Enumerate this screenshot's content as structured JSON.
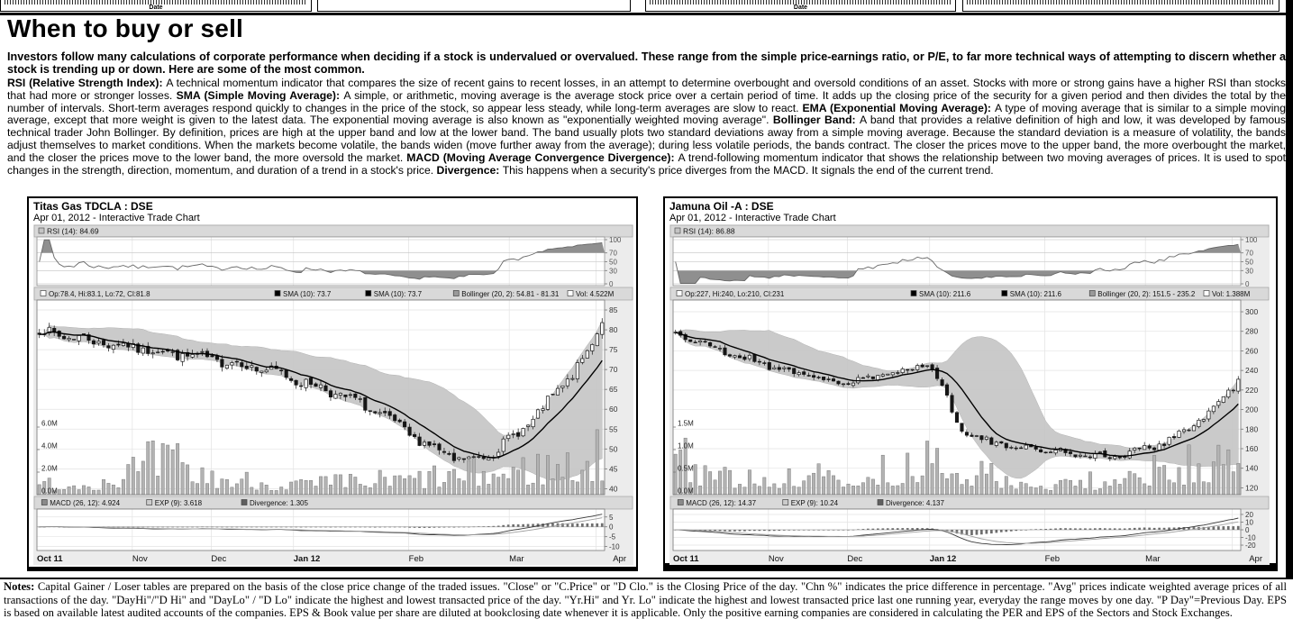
{
  "page": {
    "title": "When to buy or sell",
    "intro": "Investors follow many calculations of corporate performance when deciding if a stock is undervalued or overvalued.  These range from the simple price-earnings ratio, or P/E, to far more technical ways of attempting to discern whether a stock is trending up or down. Here are some of the most common.",
    "definitions": [
      {
        "term": "RSI (Relative Strength Index):",
        "text": "A technical momentum indicator that compares the size of recent gains to recent losses, in an attempt to determine overbought and oversold conditions of an asset. Stocks with more or strong gains have a higher RSI than stocks that had more or stronger losses."
      },
      {
        "term": "SMA (Simple Moving Average):",
        "text": "A simple, or arithmetic, moving average is the average stock price over a certain period of time. It adds up the closing price of the security for a given period and then divides the total by the number of intervals. Short-term averages respond quickly to changes in the price of the stock, so appear less steady, while long-term averages are slow to react."
      },
      {
        "term": "EMA (Exponential Moving Average):",
        "text": "A type of moving average that is similar to a simple moving average, except that more weight is given to the latest data. The exponential moving average is also known as \"exponentially weighted moving average\"."
      },
      {
        "term": "Bollinger Band:",
        "text": "A band that provides a relative definition of high and low, it was developed by famous technical trader John Bollinger. By definition, prices are high at the upper band and low at the lower band. The band usually plots two standard deviations away from a simple moving average. Because the standard deviation is a measure of volatility, the bands adjust themselves to market conditions. When the markets become volatile, the bands widen (move further away from the average); during less volatile periods, the bands contract. The closer the prices move to the upper band, the more overbought the market, and the closer the prices move to the lower band, the more oversold the market."
      },
      {
        "term": "MACD (Moving Average Convergence Divergence):",
        "text": "A trend-following momentum indicator that shows the relationship between two moving averages of prices. It is used to spot changes in the strength, direction, momentum, and duration of a trend in a stock's price."
      },
      {
        "term": "Divergence:",
        "text": "This happens when a security's price diverges from the MACD. It signals the end of the current trend."
      }
    ],
    "notes_label": "Notes:",
    "notes": "Capital Gainer / Loser tables are prepared on the basis of the close price change of the traded issues. \"Close\" or \"C.Price\" or \"D Clo.\" is the Closing Price of the day. \"Chn %\" indicates the price difference in percentage. \"Avg\" prices indicate weighted average prices of all transactions of the day.  \"DayHi\"/\"D Hi\" and \"DayLo\" / \"D Lo\" indicate the highest and lowest transacted price of the day.  \"Yr.Hi\" and Yr. Lo\" indicate the highest and lowest transacted price last one running year, everyday the range moves by one day. \"P Day\"=Previous Day. EPS is based on available latest audited accounts of the companies. EPS & Book value per share are diluted at bookclosing date whenever it is applicable. Only the positive earning companies are considered in calculating the PER and EPS of the Sectors and Stock Exchanges."
  },
  "top_strip": {
    "boxes": [
      {
        "label": "Date"
      },
      {
        "label": ""
      },
      {
        "label": "Date"
      },
      {
        "label": ""
      }
    ]
  },
  "chart_data": [
    {
      "type": "candlestick",
      "title": "Titas Gas TDCLA : DSE",
      "subtitle": "Apr 01, 2012 - Interactive Trade Chart",
      "x_labels": [
        {
          "label": "Oct 11",
          "pos": 0.0,
          "bold": true
        },
        {
          "label": "Nov",
          "pos": 0.168,
          "bold": false
        },
        {
          "label": "Dec",
          "pos": 0.307,
          "bold": false
        },
        {
          "label": "Jan 12",
          "pos": 0.452,
          "bold": true
        },
        {
          "label": "Feb",
          "pos": 0.655,
          "bold": false
        },
        {
          "label": "Mar",
          "pos": 0.832,
          "bold": false
        },
        {
          "label": "Apr",
          "pos": 0.985,
          "bold": false
        }
      ],
      "panels": {
        "rsi": {
          "legend": "RSI (14): 84.69",
          "ticks": [
            100,
            70,
            50,
            30,
            0
          ],
          "overbought": 70,
          "oversold": 30
        },
        "price": {
          "legend": [
            {
              "label": "Op:78.4, Hi:83.1, Lo:72, Cl:81.8",
              "marker": "#ffffff"
            },
            {
              "label": "SMA (10): 73.7",
              "marker": "#000000"
            },
            {
              "label": "SMA (10): 73.7",
              "marker": "#000000"
            },
            {
              "label": "Bollinger (20, 2): 54.81 - 81.31",
              "marker": "#9a9a9a"
            },
            {
              "label": "Vol: 4.522M",
              "marker": "#ffffff"
            }
          ],
          "ticks": [
            85,
            80,
            75,
            70,
            65,
            60,
            55,
            50,
            45,
            40
          ],
          "range": [
            38.5,
            87.5
          ]
        },
        "volume": {
          "ticks": [
            "6.0M",
            "4.0M",
            "2.0M",
            "0.0M"
          ]
        },
        "macd": {
          "legend": [
            {
              "label": "MACD (26, 12): 4.924",
              "marker": "#8a8a8a"
            },
            {
              "label": "EXP (9): 3.618",
              "marker": "#cccccc"
            },
            {
              "label": "Divergence: 1.305",
              "marker": "#5f5f5f"
            }
          ],
          "ticks": [
            5,
            0,
            -5,
            -10
          ],
          "range": [
            -12,
            9
          ]
        }
      },
      "n_points": 115,
      "seed": 7,
      "jitter": 1.1,
      "close_waypoints": [
        [
          0,
          79.5
        ],
        [
          8,
          78
        ],
        [
          14,
          76.5
        ],
        [
          22,
          75
        ],
        [
          30,
          73.5
        ],
        [
          38,
          72
        ],
        [
          46,
          70
        ],
        [
          52,
          67.5
        ],
        [
          58,
          65
        ],
        [
          64,
          62
        ],
        [
          70,
          58
        ],
        [
          76,
          53
        ],
        [
          80,
          50
        ],
        [
          84,
          47.5
        ],
        [
          88,
          47
        ],
        [
          92,
          49.5
        ],
        [
          96,
          53
        ],
        [
          100,
          57.5
        ],
        [
          104,
          63
        ],
        [
          108,
          69
        ],
        [
          111,
          74
        ],
        [
          114,
          81.8
        ]
      ],
      "volume_waypoints": [
        [
          0,
          0.18
        ],
        [
          12,
          0.22
        ],
        [
          20,
          0.45
        ],
        [
          26,
          0.6
        ],
        [
          32,
          0.35
        ],
        [
          40,
          0.25
        ],
        [
          48,
          0.2
        ],
        [
          56,
          0.18
        ],
        [
          64,
          0.22
        ],
        [
          72,
          0.25
        ],
        [
          80,
          0.3
        ],
        [
          88,
          0.35
        ],
        [
          94,
          0.4
        ],
        [
          100,
          0.45
        ],
        [
          106,
          0.5
        ],
        [
          110,
          0.55
        ],
        [
          114,
          0.65
        ]
      ]
    },
    {
      "type": "candlestick",
      "title": "Jamuna Oil -A : DSE",
      "subtitle": "Apr 01, 2012 - Interactive Trade Chart",
      "x_labels": [
        {
          "label": "Oct 11",
          "pos": 0.0,
          "bold": true
        },
        {
          "label": "Nov",
          "pos": 0.168,
          "bold": false
        },
        {
          "label": "Dec",
          "pos": 0.307,
          "bold": false
        },
        {
          "label": "Jan 12",
          "pos": 0.452,
          "bold": true
        },
        {
          "label": "Feb",
          "pos": 0.655,
          "bold": false
        },
        {
          "label": "Mar",
          "pos": 0.832,
          "bold": false
        },
        {
          "label": "Apr",
          "pos": 0.985,
          "bold": false
        }
      ],
      "panels": {
        "rsi": {
          "legend": "RSI (14): 86.88",
          "ticks": [
            100,
            70,
            50,
            30,
            0
          ],
          "overbought": 70,
          "oversold": 30
        },
        "price": {
          "legend": [
            {
              "label": "Op:227, Hi:240, Lo:210, Cl:231",
              "marker": "#ffffff"
            },
            {
              "label": "SMA (10): 211.6",
              "marker": "#000000"
            },
            {
              "label": "SMA (10): 211.6",
              "marker": "#000000"
            },
            {
              "label": "Bollinger (20, 2): 151.5 - 235.2",
              "marker": "#9a9a9a"
            },
            {
              "label": "Vol: 1.388M",
              "marker": "#ffffff"
            }
          ],
          "ticks": [
            300,
            280,
            260,
            240,
            220,
            200,
            180,
            160,
            140,
            120
          ],
          "range": [
            113,
            312
          ]
        },
        "volume": {
          "ticks": [
            "1.5M",
            "1.0M",
            "0.5M",
            "0.0M"
          ]
        },
        "macd": {
          "legend": [
            {
              "label": "MACD (26, 12): 14.37",
              "marker": "#8a8a8a"
            },
            {
              "label": "EXP (9): 10.24",
              "marker": "#cccccc"
            },
            {
              "label": "Divergence: 4.137",
              "marker": "#5f5f5f"
            }
          ],
          "ticks": [
            20,
            10,
            0,
            -10,
            -20
          ],
          "range": [
            -27,
            27
          ]
        }
      },
      "n_points": 115,
      "seed": 21,
      "jitter": 3.2,
      "close_waypoints": [
        [
          0,
          278
        ],
        [
          6,
          266
        ],
        [
          13,
          254
        ],
        [
          20,
          244
        ],
        [
          27,
          234
        ],
        [
          34,
          227
        ],
        [
          40,
          232
        ],
        [
          46,
          240
        ],
        [
          50,
          246
        ],
        [
          52,
          243
        ],
        [
          54,
          222
        ],
        [
          56,
          200
        ],
        [
          58,
          182
        ],
        [
          60,
          172
        ],
        [
          64,
          166
        ],
        [
          72,
          160
        ],
        [
          80,
          156
        ],
        [
          88,
          151
        ],
        [
          94,
          158
        ],
        [
          99,
          167
        ],
        [
          103,
          178
        ],
        [
          107,
          192
        ],
        [
          111,
          212
        ],
        [
          114,
          231
        ]
      ],
      "volume_waypoints": [
        [
          0,
          0.75
        ],
        [
          4,
          0.4
        ],
        [
          12,
          0.3
        ],
        [
          20,
          0.28
        ],
        [
          28,
          0.3
        ],
        [
          36,
          0.32
        ],
        [
          44,
          0.4
        ],
        [
          50,
          0.5
        ],
        [
          54,
          0.55
        ],
        [
          58,
          0.45
        ],
        [
          64,
          0.3
        ],
        [
          72,
          0.2
        ],
        [
          80,
          0.18
        ],
        [
          88,
          0.25
        ],
        [
          96,
          0.35
        ],
        [
          102,
          0.45
        ],
        [
          108,
          0.55
        ],
        [
          114,
          0.8
        ]
      ]
    }
  ]
}
